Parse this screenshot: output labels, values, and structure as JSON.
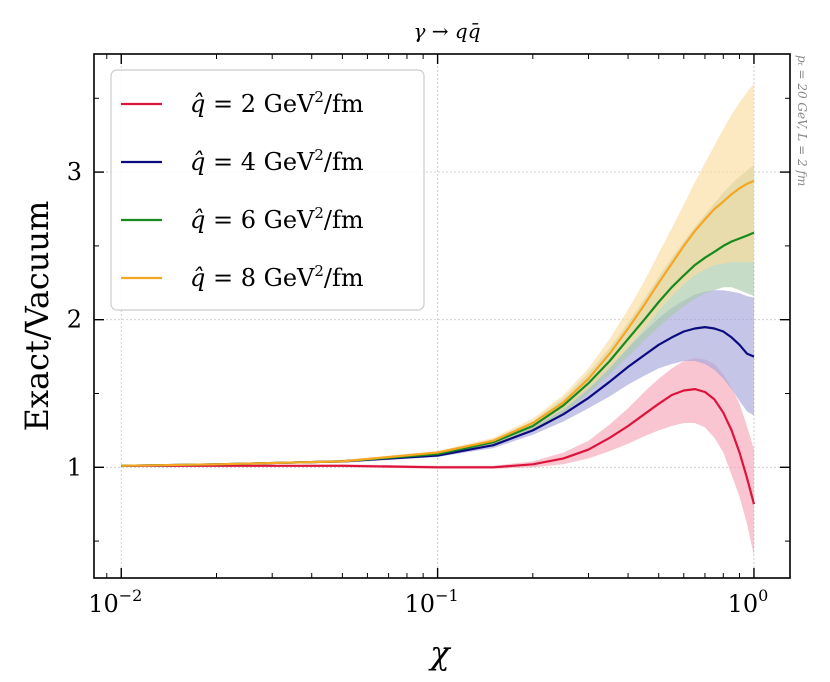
{
  "chart_data": {
    "type": "line",
    "title": "γ → qq̄",
    "xlabel": "χ",
    "ylabel": "Exact/Vacuum",
    "xscale": "log",
    "xlim": [
      0.0082,
      1.3
    ],
    "ylim": [
      0.25,
      3.8
    ],
    "grid": true,
    "legend_position": "top-left",
    "side_annotation": "pₜ = 20 GeV, L = 2 fm",
    "x_ticks": [
      {
        "value": 0.01,
        "base": "10",
        "exp": "−2"
      },
      {
        "value": 0.1,
        "base": "10",
        "exp": "−1"
      },
      {
        "value": 1,
        "base": "10",
        "exp": "0"
      }
    ],
    "y_ticks": [
      {
        "value": 1,
        "label": "1"
      },
      {
        "value": 2,
        "label": "2"
      },
      {
        "value": 3,
        "label": "3"
      }
    ],
    "x": [
      0.01,
      0.02,
      0.05,
      0.1,
      0.15,
      0.2,
      0.25,
      0.3,
      0.35,
      0.4,
      0.45,
      0.5,
      0.55,
      0.6,
      0.65,
      0.7,
      0.75,
      0.8,
      0.85,
      0.9,
      0.95,
      1.0
    ],
    "series": [
      {
        "name": "q̂ = 2 GeV²/fm",
        "qhat": "2",
        "color": "#dc143c",
        "band_color": "#f4a6b7",
        "values": [
          1.01,
          1.01,
          1.01,
          1.0,
          1.0,
          1.02,
          1.06,
          1.12,
          1.2,
          1.28,
          1.36,
          1.43,
          1.49,
          1.52,
          1.53,
          1.51,
          1.46,
          1.37,
          1.25,
          1.1,
          0.93,
          0.75
        ],
        "lower": [
          1.01,
          1.01,
          1.0,
          0.99,
          0.99,
          1.0,
          1.02,
          1.06,
          1.11,
          1.16,
          1.21,
          1.25,
          1.28,
          1.3,
          1.3,
          1.27,
          1.2,
          1.1,
          0.95,
          0.8,
          0.62,
          0.4
        ],
        "upper": [
          1.01,
          1.01,
          1.02,
          1.01,
          1.01,
          1.04,
          1.1,
          1.18,
          1.29,
          1.4,
          1.51,
          1.6,
          1.67,
          1.72,
          1.74,
          1.73,
          1.7,
          1.63,
          1.54,
          1.43,
          1.28,
          1.12
        ]
      },
      {
        "name": "q̂ = 4 GeV²/fm",
        "qhat": "4",
        "color": "#0b0b7f",
        "band_color": "#a6a6dc",
        "values": [
          1.01,
          1.02,
          1.04,
          1.08,
          1.15,
          1.25,
          1.36,
          1.47,
          1.58,
          1.68,
          1.76,
          1.83,
          1.88,
          1.92,
          1.94,
          1.95,
          1.94,
          1.92,
          1.88,
          1.83,
          1.77,
          1.75
        ],
        "lower": [
          1.01,
          1.02,
          1.03,
          1.07,
          1.13,
          1.22,
          1.31,
          1.4,
          1.48,
          1.56,
          1.62,
          1.67,
          1.7,
          1.72,
          1.72,
          1.7,
          1.66,
          1.6,
          1.53,
          1.45,
          1.38,
          1.35
        ],
        "upper": [
          1.01,
          1.02,
          1.05,
          1.1,
          1.17,
          1.28,
          1.41,
          1.55,
          1.69,
          1.81,
          1.92,
          2.01,
          2.08,
          2.13,
          2.17,
          2.19,
          2.2,
          2.2,
          2.19,
          2.18,
          2.16,
          2.15
        ]
      },
      {
        "name": "q̂ = 6 GeV²/fm",
        "qhat": "6",
        "color": "#178a1d",
        "band_color": "#a9c9a9",
        "values": [
          1.01,
          1.02,
          1.04,
          1.09,
          1.17,
          1.28,
          1.42,
          1.57,
          1.72,
          1.87,
          2.0,
          2.12,
          2.22,
          2.3,
          2.37,
          2.42,
          2.46,
          2.5,
          2.53,
          2.55,
          2.57,
          2.59
        ],
        "lower": [
          1.01,
          1.02,
          1.04,
          1.08,
          1.15,
          1.25,
          1.37,
          1.5,
          1.63,
          1.75,
          1.86,
          1.95,
          2.03,
          2.09,
          2.14,
          2.18,
          2.2,
          2.22,
          2.22,
          2.2,
          2.18,
          2.16
        ],
        "upper": [
          1.01,
          1.02,
          1.05,
          1.1,
          1.19,
          1.31,
          1.47,
          1.64,
          1.81,
          1.98,
          2.14,
          2.29,
          2.42,
          2.53,
          2.63,
          2.71,
          2.79,
          2.86,
          2.92,
          2.97,
          3.01,
          3.05
        ]
      },
      {
        "name": "q̂ = 8 GeV²/fm",
        "qhat": "8",
        "color": "#f5a623",
        "band_color": "#fbdca0",
        "values": [
          1.01,
          1.02,
          1.04,
          1.1,
          1.18,
          1.3,
          1.44,
          1.6,
          1.77,
          1.94,
          2.1,
          2.25,
          2.38,
          2.5,
          2.6,
          2.68,
          2.75,
          2.8,
          2.85,
          2.89,
          2.92,
          2.94
        ],
        "lower": [
          1.01,
          1.02,
          1.04,
          1.09,
          1.16,
          1.27,
          1.39,
          1.53,
          1.67,
          1.81,
          1.94,
          2.06,
          2.16,
          2.24,
          2.3,
          2.34,
          2.37,
          2.38,
          2.39,
          2.39,
          2.39,
          2.39
        ],
        "upper": [
          1.01,
          1.02,
          1.05,
          1.11,
          1.2,
          1.33,
          1.49,
          1.67,
          1.87,
          2.07,
          2.26,
          2.45,
          2.62,
          2.78,
          2.93,
          3.06,
          3.18,
          3.29,
          3.39,
          3.47,
          3.54,
          3.6
        ]
      }
    ]
  }
}
